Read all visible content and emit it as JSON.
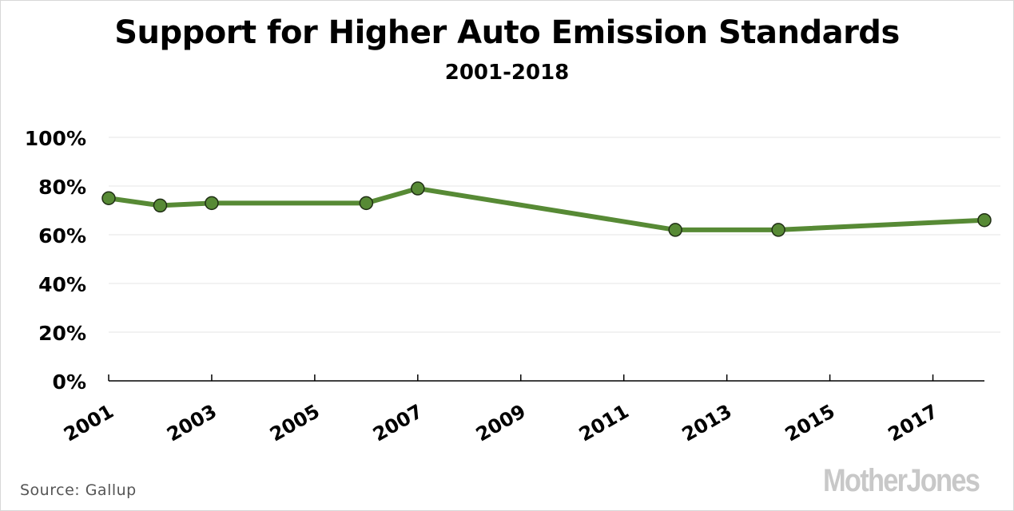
{
  "chart_data": {
    "type": "line",
    "title": "Support for Higher Auto Emission Standards",
    "subtitle": "2001-2018",
    "x": [
      2001,
      2002,
      2003,
      2006,
      2007,
      2012,
      2014,
      2018
    ],
    "series": [
      {
        "values": [
          75,
          72,
          73,
          73,
          79,
          62,
          62,
          66
        ]
      }
    ],
    "xlim": [
      2001,
      2018
    ],
    "ylim": [
      0,
      100
    ],
    "x_tick_labels": [
      "2001",
      "2003",
      "2005",
      "2007",
      "2009",
      "2011",
      "2013",
      "2015",
      "2017"
    ],
    "y_tick_labels": [
      "0%",
      "20%",
      "40%",
      "60%",
      "80%",
      "100%"
    ],
    "y_ticks": [
      0,
      20,
      40,
      60,
      80,
      100
    ],
    "x_ticks": [
      2001,
      2003,
      2005,
      2007,
      2009,
      2011,
      2013,
      2015,
      2017
    ],
    "grid": true,
    "line_color": "#578a35",
    "marker_color": "#578a35",
    "marker_stroke": "#1f2e14",
    "gridline_color": "#e6e6e6"
  },
  "source": "Source:  Gallup",
  "logo": "MotherJones"
}
